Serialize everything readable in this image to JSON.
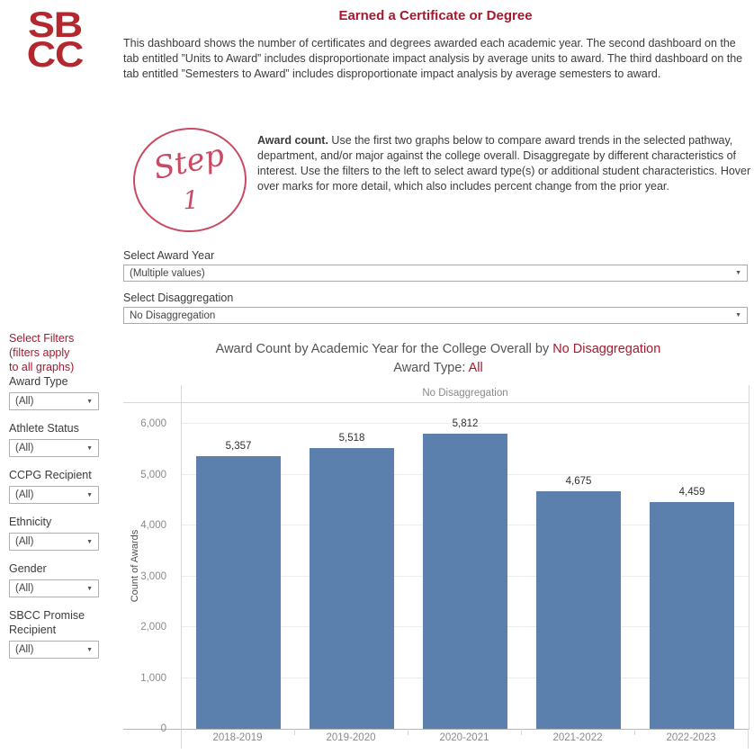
{
  "header": {
    "logo_line1": "SB",
    "logo_line2": "CC",
    "title": "Earned a Certificate or Degree",
    "description": "This dashboard shows the number of certificates and degrees awarded each academic year. The second dashboard on the tab entitled ”Units to Award” includes disproportionate impact analysis by average units to award. The third dashboard on the tab entitled ”Semesters to Award” includes disproportionate impact analysis by average semesters to award."
  },
  "step": {
    "badge_word": "Step",
    "badge_number": "1",
    "lead": "Award count.",
    "text": " Use the first two graphs below to compare award trends in the selected pathway, department, and/or major against the college overall. Disaggregate by different characteristics of interest. Use the filters to the left to select award type(s) or additional student characteristics. Hover over marks for more detail, which also includes percent change from the prior year."
  },
  "selectors": {
    "award_year_label": "Select Award Year",
    "award_year_value": "(Multiple values)",
    "disaggregation_label": "Select Disaggregation",
    "disaggregation_value": "No Disaggregation"
  },
  "sidebar": {
    "heading_lines": [
      "Select Filters",
      "(filters apply",
      "to all graphs)"
    ],
    "filters": [
      {
        "label": "Award Type",
        "value": "(All)"
      },
      {
        "label": "Athlete Status",
        "value": "(All)"
      },
      {
        "label": "CCPG Recipient",
        "value": "(All)"
      },
      {
        "label": "Ethnicity",
        "value": "(All)"
      },
      {
        "label": "Gender",
        "value": "(All)"
      },
      {
        "label": "SBCC Promise Recipient",
        "value": "(All)"
      }
    ]
  },
  "chart": {
    "title_prefix": "Award Count by Academic Year for the College Overall by ",
    "title_highlight": "No Disaggregation",
    "subtitle_prefix": "Award Type: ",
    "subtitle_highlight": "All",
    "pane_header": "No Disaggregation",
    "ylabel": "Count of Awards"
  },
  "chart_data": {
    "type": "bar",
    "title": "Award Count by Academic Year for the College Overall by No Disaggregation",
    "subtitle": "Award Type: All",
    "categories": [
      "2018-2019",
      "2019-2020",
      "2020-2021",
      "2021-2022",
      "2022-2023"
    ],
    "values": [
      5357,
      5518,
      5812,
      4675,
      4459
    ],
    "value_labels": [
      "5,357",
      "5,518",
      "5,812",
      "4,675",
      "4,459"
    ],
    "xlabel": "",
    "ylabel": "Count of Awards",
    "ylim": [
      0,
      6000
    ],
    "ytick_interval": 1000,
    "ytick_labels": [
      "0",
      "1,000",
      "2,000",
      "3,000",
      "4,000",
      "5,000",
      "6,000"
    ],
    "grid": true,
    "legend": "none",
    "bar_color": "#5b80ad"
  },
  "colors": {
    "brand_red": "#a6192e",
    "logo_red": "#b3282e",
    "step_rose": "#c84a63",
    "bar_blue": "#5b80ad",
    "axis_gray": "#8a8a8a"
  }
}
